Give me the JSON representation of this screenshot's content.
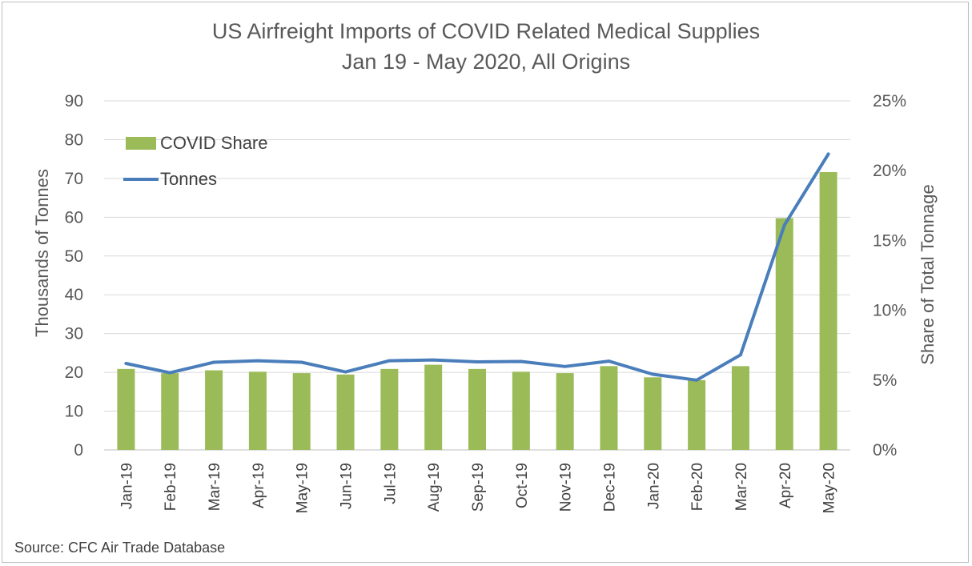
{
  "chart_data": {
    "type": "bar",
    "title": "US Airfreight Imports of COVID Related Medical Supplies",
    "subtitle": "Jan 19 - May 2020, All Origins",
    "categories": [
      "Jan-19",
      "Feb-19",
      "Mar-19",
      "Apr-19",
      "May-19",
      "Jun-19",
      "Jul-19",
      "Aug-19",
      "Sep-19",
      "Oct-19",
      "Nov-19",
      "Dec-19",
      "Jan-20",
      "Feb-20",
      "Mar-20",
      "Apr-20",
      "May-20"
    ],
    "ylabel": "Thousands of Tonnes",
    "y2label": "Share of Total Tonnage",
    "ylim": [
      0,
      90
    ],
    "y2lim": [
      0,
      0.25
    ],
    "yticks": [
      "0",
      "10",
      "20",
      "30",
      "40",
      "50",
      "60",
      "70",
      "80",
      "90"
    ],
    "y2ticks": [
      "0%",
      "5%",
      "10%",
      "15%",
      "20%",
      "25%"
    ],
    "grid": true,
    "legend_position": "top-left",
    "series": [
      {
        "name": "COVID Share",
        "type": "bar",
        "axis": "right",
        "color": "#9bbb59",
        "values": [
          0.058,
          0.055,
          0.057,
          0.056,
          0.055,
          0.054,
          0.058,
          0.061,
          0.058,
          0.056,
          0.055,
          0.06,
          0.052,
          0.05,
          0.06,
          0.166,
          0.199
        ]
      },
      {
        "name": "Tonnes",
        "type": "line",
        "axis": "left",
        "color": "#4a7ebb",
        "values": [
          22.3,
          19.9,
          22.6,
          23.0,
          22.6,
          20.1,
          23.0,
          23.2,
          22.7,
          22.8,
          21.5,
          22.9,
          19.5,
          18.0,
          24.5,
          58.0,
          76.3
        ]
      }
    ]
  },
  "source": "Source: CFC Air Trade Database"
}
